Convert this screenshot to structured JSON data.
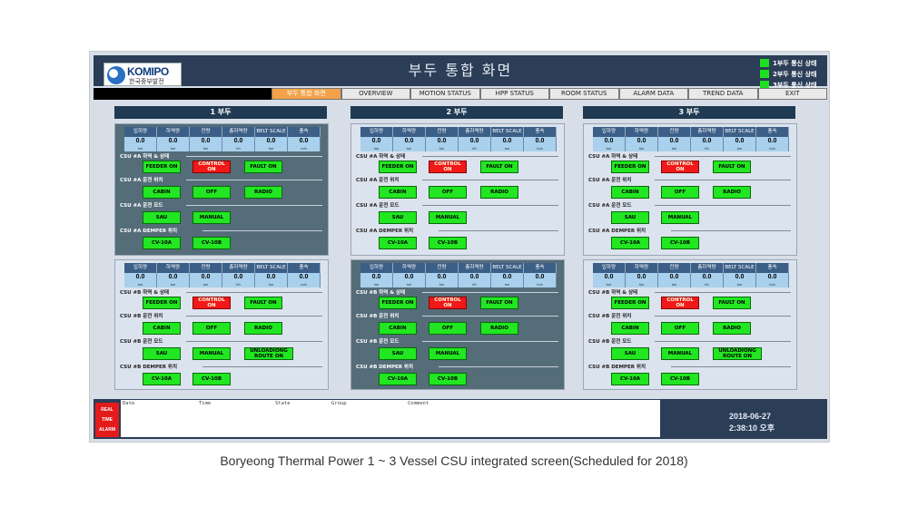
{
  "logo": {
    "name": "KOMIPO",
    "sub": "한국중부발전"
  },
  "title": "부두 통합 화면",
  "comm_status": [
    "1부두 통신 상태",
    "2부두 통신 상태",
    "3부두 통신 상태"
  ],
  "menu": [
    "부두 통합 화면",
    "OVERVIEW",
    "MOTION STATUS",
    "HPP STATUS",
    "ROOM STATUS",
    "ALARM DATA",
    "TREND DATA",
    "EXIT"
  ],
  "vessels": [
    "1 부두",
    "2 부두",
    "3 부두"
  ],
  "table_headers": [
    "입하량",
    "하역량",
    "잔량",
    "총하역량",
    "BELT SCALE",
    "풍속"
  ],
  "table_units": [
    "ton",
    "ton",
    "ton",
    "t/h",
    "ton",
    "m/s"
  ],
  "table_value": "0.0",
  "sections": {
    "A": [
      "CSU #A  하역 & 상태",
      "CSU #A  운전 위치",
      "CSU #A  운전 모드",
      "CSU #A  DEMPER 위치"
    ],
    "B": [
      "CSU #B  하역 & 상태",
      "CSU #B  운전 위치",
      "CSU #B  운전 모드",
      "CSU #B  DEMPER 위치"
    ]
  },
  "buttons": {
    "feeder": "FEEDER ON",
    "control": "CONTROL ON",
    "fault": "FAULT ON",
    "cabin": "CABIN",
    "off": "OFF",
    "radio": "RADIO",
    "sau": "SAU",
    "manual": "MANUAL",
    "unloading": "UNLOADIONG ROUTE ON",
    "cv10a": "CV-10A",
    "cv10b": "CV-10B"
  },
  "alarm": {
    "side": [
      "REAL",
      "TIME",
      "ALARM"
    ],
    "columns": [
      "Date",
      "Time",
      "State",
      "Group",
      "Comment"
    ]
  },
  "datetime": {
    "date": "2018-06-27",
    "time": "2:38:10 오후"
  },
  "caption": "Boryeong Thermal Power 1 ~ 3 Vessel CSU integrated screen(Scheduled for 2018)",
  "colors": {
    "header": "#2b3d57",
    "active_tab": "#f3a247",
    "green": "#21e621",
    "red": "#f01818"
  }
}
